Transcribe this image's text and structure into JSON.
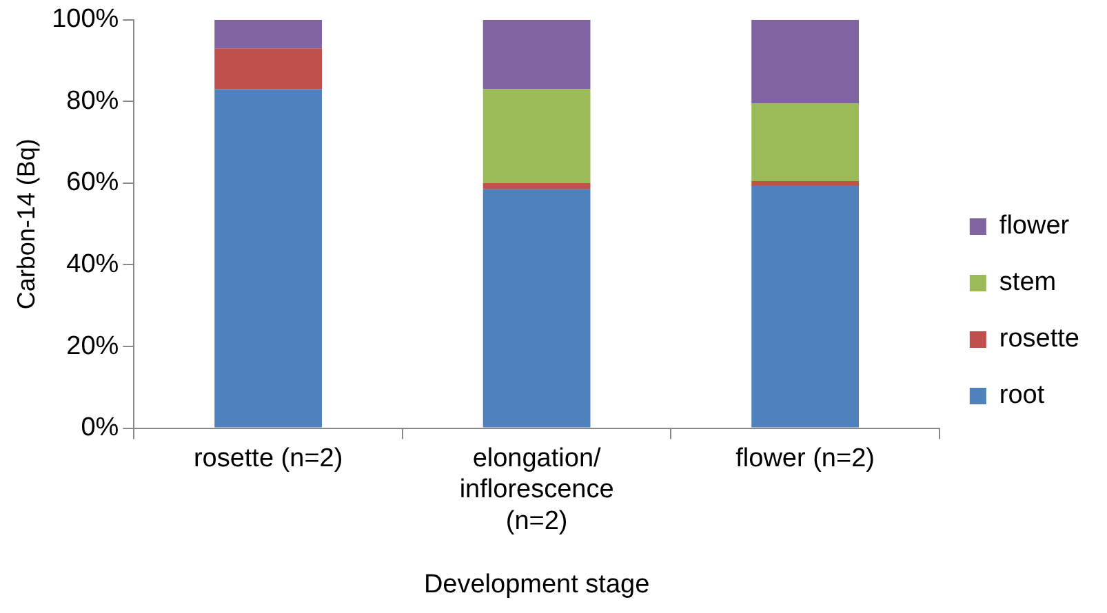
{
  "chart_data": {
    "type": "bar",
    "stacked": true,
    "xlabel": "Development stage",
    "ylabel": "Carbon-14 (Bq)",
    "categories": [
      "rosette (n=2)",
      "elongation/inflorescence (n=2)",
      "flower (n=2)"
    ],
    "series": [
      {
        "name": "root",
        "color": "#4f81bd",
        "values": [
          83,
          58.5,
          59.5
        ]
      },
      {
        "name": "rosette",
        "color": "#c0504d",
        "values": [
          10,
          1.5,
          1
        ]
      },
      {
        "name": "stem",
        "color": "#9bbb59",
        "values": [
          0,
          23,
          19
        ]
      },
      {
        "name": "flower",
        "color": "#8064a2",
        "values": [
          7,
          17,
          20.5
        ]
      }
    ],
    "ylim": [
      0,
      100
    ],
    "yticks": [
      {
        "value": 0,
        "label": "0%"
      },
      {
        "value": 20,
        "label": "20%"
      },
      {
        "value": 40,
        "label": "40%"
      },
      {
        "value": 60,
        "label": "60%"
      },
      {
        "value": 80,
        "label": "80%"
      },
      {
        "value": 100,
        "label": "100%"
      }
    ],
    "grid": false,
    "legend": "right"
  }
}
